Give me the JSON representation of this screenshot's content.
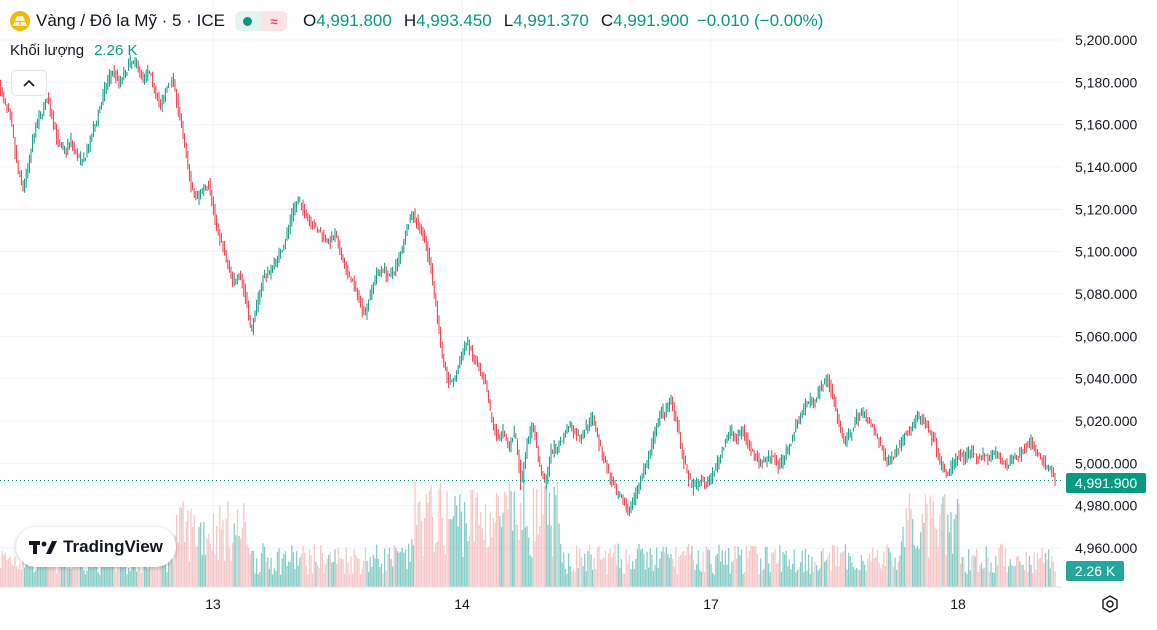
{
  "legend": {
    "symbol": "Vàng / Đô la Mỹ · 5 · ICE",
    "open_label": "O",
    "open": "4,991.800",
    "high_label": "H",
    "high": "4,993.450",
    "low_label": "L",
    "low": "4,991.370",
    "close_label": "C",
    "close": "4,991.900",
    "change": "−0.010 (−0.00%)"
  },
  "volume_legend": {
    "label": "Khối lượng",
    "value": "2.26 K"
  },
  "price_tag": "4,991.900",
  "volume_tag": "2.26 K",
  "logo_text": "TradingView",
  "colors": {
    "up": "#089981",
    "down": "#f23645",
    "vol_up": "#26a69a",
    "vol_down": "#ef9a9a",
    "grid": "#f0f3fa",
    "text": "#131722"
  },
  "chart_data": {
    "type": "candlestick",
    "title": "Vàng / Đô la Mỹ · 5 · ICE",
    "y_ticks": [
      "5,200.000",
      "5,180.000",
      "5,160.000",
      "5,140.000",
      "5,120.000",
      "5,100.000",
      "5,080.000",
      "5,060.000",
      "5,040.000",
      "5,020.000",
      "5,000.000",
      "4,980.000",
      "4,960.000"
    ],
    "ylim": [
      4945,
      5205
    ],
    "x_ticks": [
      "13",
      "14",
      "17",
      "18"
    ],
    "last_price": 4991.9,
    "price_path": [
      [
        0,
        5178
      ],
      [
        6,
        5170
      ],
      [
        12,
        5162
      ],
      [
        18,
        5140
      ],
      [
        24,
        5130
      ],
      [
        30,
        5142
      ],
      [
        36,
        5158
      ],
      [
        42,
        5165
      ],
      [
        48,
        5172
      ],
      [
        54,
        5162
      ],
      [
        60,
        5150
      ],
      [
        66,
        5148
      ],
      [
        72,
        5152
      ],
      [
        78,
        5145
      ],
      [
        84,
        5142
      ],
      [
        90,
        5150
      ],
      [
        96,
        5160
      ],
      [
        102,
        5170
      ],
      [
        108,
        5180
      ],
      [
        114,
        5186
      ],
      [
        120,
        5180
      ],
      [
        126,
        5184
      ],
      [
        132,
        5190
      ],
      [
        138,
        5188
      ],
      [
        144,
        5182
      ],
      [
        150,
        5185
      ],
      [
        156,
        5176
      ],
      [
        162,
        5168
      ],
      [
        168,
        5178
      ],
      [
        174,
        5182
      ],
      [
        180,
        5165
      ],
      [
        186,
        5150
      ],
      [
        192,
        5130
      ],
      [
        198,
        5125
      ],
      [
        204,
        5130
      ],
      [
        210,
        5132
      ],
      [
        216,
        5115
      ],
      [
        222,
        5105
      ],
      [
        228,
        5095
      ],
      [
        234,
        5085
      ],
      [
        240,
        5090
      ],
      [
        246,
        5080
      ],
      [
        252,
        5062
      ],
      [
        258,
        5075
      ],
      [
        264,
        5088
      ],
      [
        270,
        5090
      ],
      [
        276,
        5095
      ],
      [
        282,
        5100
      ],
      [
        288,
        5108
      ],
      [
        294,
        5120
      ],
      [
        300,
        5124
      ],
      [
        306,
        5118
      ],
      [
        312,
        5114
      ],
      [
        318,
        5110
      ],
      [
        324,
        5108
      ],
      [
        330,
        5104
      ],
      [
        336,
        5108
      ],
      [
        342,
        5098
      ],
      [
        348,
        5090
      ],
      [
        354,
        5085
      ],
      [
        360,
        5078
      ],
      [
        366,
        5070
      ],
      [
        372,
        5082
      ],
      [
        378,
        5090
      ],
      [
        384,
        5092
      ],
      [
        390,
        5088
      ],
      [
        396,
        5092
      ],
      [
        402,
        5100
      ],
      [
        408,
        5112
      ],
      [
        414,
        5118
      ],
      [
        420,
        5112
      ],
      [
        426,
        5105
      ],
      [
        432,
        5092
      ],
      [
        438,
        5070
      ],
      [
        444,
        5048
      ],
      [
        450,
        5038
      ],
      [
        456,
        5040
      ],
      [
        462,
        5050
      ],
      [
        468,
        5058
      ],
      [
        474,
        5050
      ],
      [
        480,
        5044
      ],
      [
        486,
        5038
      ],
      [
        492,
        5022
      ],
      [
        498,
        5012
      ],
      [
        504,
        5015
      ],
      [
        510,
        5008
      ],
      [
        516,
        5015
      ],
      [
        522,
        4990
      ],
      [
        528,
        5010
      ],
      [
        534,
        5018
      ],
      [
        540,
        5000
      ],
      [
        546,
        4990
      ],
      [
        552,
        5005
      ],
      [
        558,
        5008
      ],
      [
        564,
        5012
      ],
      [
        570,
        5018
      ],
      [
        576,
        5014
      ],
      [
        582,
        5012
      ],
      [
        588,
        5018
      ],
      [
        594,
        5022
      ],
      [
        600,
        5010
      ],
      [
        606,
        5000
      ],
      [
        612,
        4992
      ],
      [
        618,
        4985
      ],
      [
        624,
        4982
      ],
      [
        630,
        4978
      ],
      [
        636,
        4984
      ],
      [
        642,
        4994
      ],
      [
        648,
        5000
      ],
      [
        654,
        5010
      ],
      [
        660,
        5022
      ],
      [
        666,
        5025
      ],
      [
        672,
        5030
      ],
      [
        678,
        5020
      ],
      [
        684,
        5002
      ],
      [
        690,
        4992
      ],
      [
        696,
        4988
      ],
      [
        702,
        4992
      ],
      [
        708,
        4990
      ],
      [
        714,
        4995
      ],
      [
        720,
        5002
      ],
      [
        726,
        5010
      ],
      [
        732,
        5015
      ],
      [
        738,
        5012
      ],
      [
        744,
        5016
      ],
      [
        750,
        5008
      ],
      [
        756,
        5004
      ],
      [
        762,
        5000
      ],
      [
        768,
        5002
      ],
      [
        774,
        5004
      ],
      [
        780,
        4998
      ],
      [
        786,
        5004
      ],
      [
        792,
        5010
      ],
      [
        798,
        5020
      ],
      [
        804,
        5025
      ],
      [
        810,
        5030
      ],
      [
        816,
        5030
      ],
      [
        822,
        5036
      ],
      [
        828,
        5040
      ],
      [
        834,
        5032
      ],
      [
        840,
        5018
      ],
      [
        846,
        5010
      ],
      [
        852,
        5014
      ],
      [
        858,
        5022
      ],
      [
        864,
        5024
      ],
      [
        870,
        5020
      ],
      [
        876,
        5014
      ],
      [
        882,
        5008
      ],
      [
        888,
        5000
      ],
      [
        894,
        5004
      ],
      [
        900,
        5008
      ],
      [
        906,
        5014
      ],
      [
        912,
        5016
      ],
      [
        918,
        5022
      ],
      [
        924,
        5020
      ],
      [
        930,
        5015
      ],
      [
        936,
        5010
      ],
      [
        942,
        4998
      ],
      [
        948,
        4995
      ],
      [
        954,
        5000
      ],
      [
        960,
        5004
      ],
      [
        966,
        5002
      ],
      [
        972,
        5006
      ],
      [
        978,
        5002
      ],
      [
        984,
        5004
      ],
      [
        990,
        5002
      ],
      [
        996,
        5005
      ],
      [
        1002,
        5002
      ],
      [
        1008,
        4998
      ],
      [
        1014,
        5002
      ],
      [
        1020,
        5004
      ],
      [
        1026,
        5008
      ],
      [
        1032,
        5010
      ],
      [
        1038,
        5005
      ],
      [
        1044,
        5000
      ],
      [
        1050,
        4998
      ],
      [
        1056,
        4992
      ]
    ]
  }
}
